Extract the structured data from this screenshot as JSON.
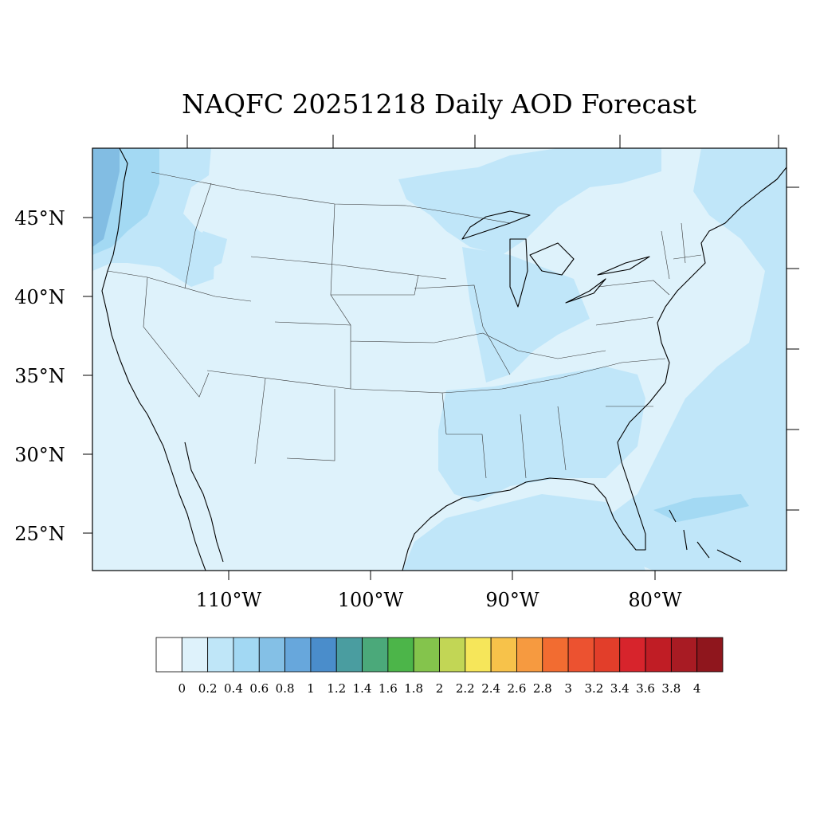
{
  "title": "NAQFC 20251218 Daily AOD Forecast",
  "map": {
    "lat_range": [
      22.5,
      49.2
    ],
    "lon_range": [
      -119,
      -70.2
    ],
    "lat_labels": [
      "45°N",
      "40°N",
      "35°N",
      "30°N",
      "25°N"
    ],
    "lon_labels": [
      "110°W",
      "100°W",
      "90°W",
      "80°W"
    ],
    "field_colors": {
      "background": "#def2fb",
      "low": "#c0e6f9",
      "mid": "#a3d9f3",
      "high": "#82bde3"
    }
  },
  "colorbar": {
    "labels": [
      "0",
      "0.2",
      "0.4",
      "0.6",
      "0.8",
      "1",
      "1.2",
      "1.4",
      "1.6",
      "1.8",
      "2",
      "2.2",
      "2.4",
      "2.6",
      "2.8",
      "3",
      "3.2",
      "3.4",
      "3.6",
      "3.8",
      "4"
    ],
    "colors": [
      "#ffffff",
      "#def2fb",
      "#bfe6f8",
      "#a2d8f3",
      "#84c0e6",
      "#67a7dc",
      "#4a8dcb",
      "#4a9da0",
      "#4ba97a",
      "#4cb549",
      "#84c44c",
      "#c2d655",
      "#f6e65a",
      "#f7c24a",
      "#f69a40",
      "#f26c31",
      "#ec5230",
      "#e23e2a",
      "#d7242c",
      "#c01d25",
      "#a81b23",
      "#8f161d"
    ]
  }
}
